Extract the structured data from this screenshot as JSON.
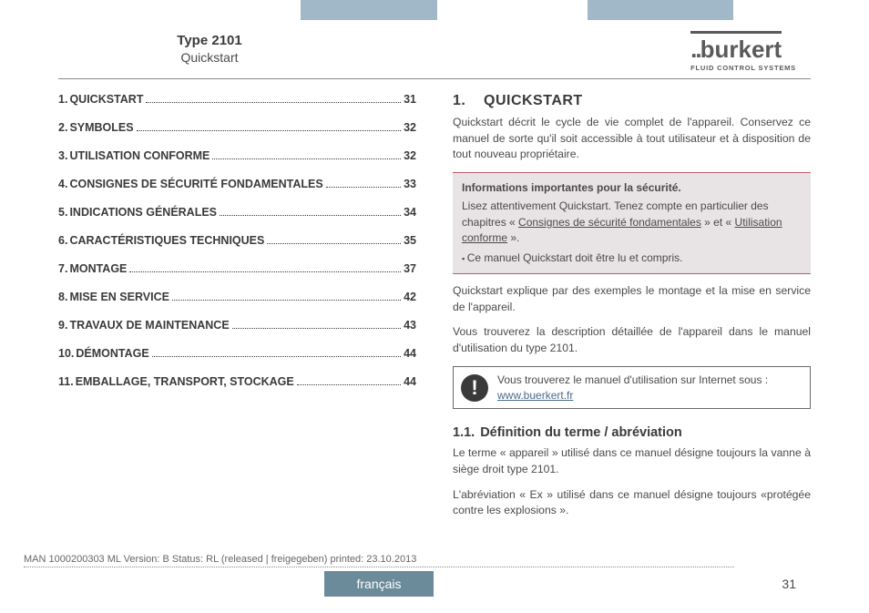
{
  "header": {
    "type_label": "Type 2101",
    "subtitle": "Quickstart",
    "brand_name": "burkert",
    "brand_tagline": "FLUID CONTROL SYSTEMS"
  },
  "toc": [
    {
      "num": "1.",
      "title": "QUICKSTART",
      "page": "31"
    },
    {
      "num": "2.",
      "title": "SYMBOLES",
      "page": "32"
    },
    {
      "num": "3.",
      "title": "UTILISATION CONFORME",
      "page": "32"
    },
    {
      "num": "4.",
      "title": "CONSIGNES DE SÉCURITÉ FONDAMENTALES",
      "page": "33"
    },
    {
      "num": "5.",
      "title": "INDICATIONS GÉNÉRALES",
      "page": "34"
    },
    {
      "num": "6.",
      "title": "CARACTÉRISTIQUES TECHNIQUES",
      "page": "35"
    },
    {
      "num": "7.",
      "title": "MONTAGE",
      "page": "37"
    },
    {
      "num": "8.",
      "title": "MISE EN SERVICE",
      "page": "42"
    },
    {
      "num": "9.",
      "title": "TRAVAUX DE MAINTENANCE",
      "page": "43"
    },
    {
      "num": "10.",
      "title": "DÉMONTAGE",
      "page": "44"
    },
    {
      "num": "11.",
      "title": "EMBALLAGE, TRANSPORT, STOCKAGE",
      "page": "44"
    }
  ],
  "main": {
    "section_num": "1.",
    "section_title": "QUICKSTART",
    "intro": "Quickstart décrit le cycle de vie complet de l'appareil. Conservez ce manuel de sorte qu'il soit accessible à tout utilisateur et à disposition de tout nouveau propriétaire.",
    "callout": {
      "title": "Informations importantes pour la sécurité.",
      "body_pre": "Lisez attentivement Quickstart. Tenez compte en particulier des chapitres « ",
      "link1": "Consignes de sécurité fondamentales",
      "mid": " » et « ",
      "link2": "Utilisation conforme",
      "post": " ».",
      "bullet": "Ce manuel Quickstart doit être lu et compris."
    },
    "para2": "Quickstart explique par des exemples le montage et la mise en service de l'appareil.",
    "para3": "Vous trouverez la description détaillée de l'appareil dans le manuel d'utilisation du type 2101.",
    "note": {
      "text": "Vous trouverez le manuel d'utilisation sur Internet sous :",
      "link": "www.buerkert.fr"
    },
    "sub_num": "1.1.",
    "sub_title": "Définition du terme / abréviation",
    "sub_p1": "Le terme « appareil » utilisé dans ce manuel désigne toujours la vanne à siège droit type 2101.",
    "sub_p2": "L'abréviation « Ex » utilisé dans ce manuel désigne toujours «protégée contre les explosions »."
  },
  "footer": {
    "meta": "MAN 1000200303 ML Version: B Status: RL (released | freigegeben) printed: 23.10.2013",
    "lang": "français",
    "page": "31"
  }
}
